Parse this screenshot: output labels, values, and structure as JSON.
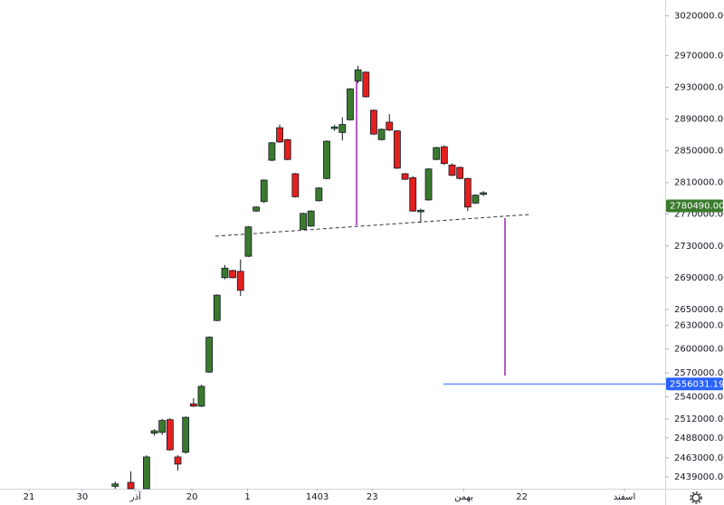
{
  "chart_data": {
    "type": "candlestick",
    "up_color": "#3a7a2e",
    "down_color": "#e3201e",
    "x": [
      11,
      13,
      15,
      16,
      17,
      18,
      19,
      20,
      21,
      22,
      23,
      24,
      25,
      26,
      27,
      28,
      29,
      30,
      31,
      32,
      33,
      34,
      35,
      36,
      37,
      38,
      39,
      40,
      41,
      42,
      43,
      44,
      45,
      46,
      47,
      48,
      49,
      50,
      51,
      52,
      53,
      54,
      55,
      56,
      57,
      58
    ],
    "open": [
      2427000,
      2432000,
      2424000,
      2494000,
      2495000,
      2511000,
      2464000,
      2470000,
      2531000,
      2528000,
      2571000,
      2636000,
      2690000,
      2699000,
      2698000,
      2717000,
      2774000,
      2786000,
      2838000,
      2879000,
      2864000,
      2821000,
      2751000,
      2755000,
      2787000,
      2815000,
      2878000,
      2873000,
      2889000,
      2938000,
      2949000,
      2901000,
      2864000,
      2886000,
      2875000,
      2821000,
      2816000,
      2773000,
      2788000,
      2839000,
      2855000,
      2832000,
      2829000,
      2815000,
      2784000,
      2795000
    ],
    "high": [
      2433000,
      2446000,
      2466000,
      2499000,
      2512000,
      2513000,
      2466000,
      2515000,
      2538000,
      2555000,
      2616000,
      2669000,
      2706000,
      2700000,
      2713000,
      2755000,
      2780000,
      2814000,
      2861000,
      2883000,
      2865000,
      2822000,
      2772000,
      2775000,
      2804000,
      2863000,
      2883000,
      2892000,
      2929000,
      2957000,
      2950000,
      2902000,
      2878000,
      2896000,
      2876000,
      2822000,
      2818000,
      2777000,
      2828000,
      2855000,
      2857000,
      2834000,
      2830000,
      2816000,
      2795000,
      2799000
    ],
    "low": [
      2424000,
      2424000,
      2424000,
      2491000,
      2492000,
      2472000,
      2447000,
      2468000,
      2527000,
      2527000,
      2570000,
      2635000,
      2688000,
      2689000,
      2667000,
      2716000,
      2773000,
      2784000,
      2837000,
      2860000,
      2838000,
      2791000,
      2750000,
      2754000,
      2786000,
      2814000,
      2875000,
      2863000,
      2888000,
      2935000,
      2917000,
      2870000,
      2863000,
      2875000,
      2827000,
      2813000,
      2773000,
      2759000,
      2787000,
      2838000,
      2832000,
      2818000,
      2814000,
      2774000,
      2783000,
      2793000
    ],
    "close": [
      2430000,
      2424000,
      2464000,
      2497000,
      2510000,
      2473000,
      2455000,
      2514000,
      2528000,
      2553000,
      2615000,
      2668000,
      2702000,
      2690000,
      2674000,
      2754000,
      2779000,
      2813000,
      2860000,
      2861000,
      2839000,
      2792000,
      2771000,
      2774000,
      2803000,
      2862000,
      2880000,
      2883000,
      2928000,
      2952000,
      2918000,
      2871000,
      2877000,
      2876000,
      2828000,
      2814000,
      2774000,
      2775000,
      2827000,
      2854000,
      2834000,
      2819000,
      2815000,
      2779000,
      2794000,
      2797000
    ],
    "xlim": [
      -3.7,
      81.2
    ],
    "xticks": [
      {
        "value": 0,
        "label": "21"
      },
      {
        "value": 6.8,
        "label": "30"
      },
      {
        "value": 13.6,
        "label": "آذر"
      },
      {
        "value": 20.8,
        "label": "20"
      },
      {
        "value": 27.9,
        "label": "1"
      },
      {
        "value": 36.8,
        "label": "1403"
      },
      {
        "value": 43.8,
        "label": "23"
      },
      {
        "value": 55.5,
        "label": "بهمن"
      },
      {
        "value": 62.9,
        "label": "22"
      },
      {
        "value": 76,
        "label": "اسفند"
      }
    ],
    "ylim": [
      2424000,
      3040000
    ],
    "yticks": [
      {
        "value": 3020000,
        "label": "3020000.00"
      },
      {
        "value": 2970000,
        "label": "2970000.00"
      },
      {
        "value": 2930000,
        "label": "2930000.00"
      },
      {
        "value": 2890000,
        "label": "2890000.00"
      },
      {
        "value": 2850000,
        "label": "2850000.00"
      },
      {
        "value": 2810000,
        "label": "2810000.00"
      },
      {
        "value": 2770000,
        "label": "2770000.00"
      },
      {
        "value": 2730000,
        "label": "2730000.00"
      },
      {
        "value": 2690000,
        "label": "2690000.00"
      },
      {
        "value": 2650000,
        "label": "2650000.00"
      },
      {
        "value": 2630000,
        "label": "2630000.00"
      },
      {
        "value": 2600000,
        "label": "2600000.00"
      },
      {
        "value": 2570000,
        "label": "2570000.00"
      },
      {
        "value": 2540000,
        "label": "2540000.00"
      },
      {
        "value": 2512000,
        "label": "2512000.00"
      },
      {
        "value": 2488000,
        "label": "2488000.00"
      },
      {
        "value": 2463000,
        "label": "2463000.00"
      },
      {
        "value": 2439000,
        "label": "2439000.00"
      }
    ],
    "last_price": {
      "value": 2780490,
      "label": "2780490.00"
    },
    "last_price_color": "#3a7a2e",
    "target_price": 2556031.19,
    "target_color": "#2962ff"
  }
}
